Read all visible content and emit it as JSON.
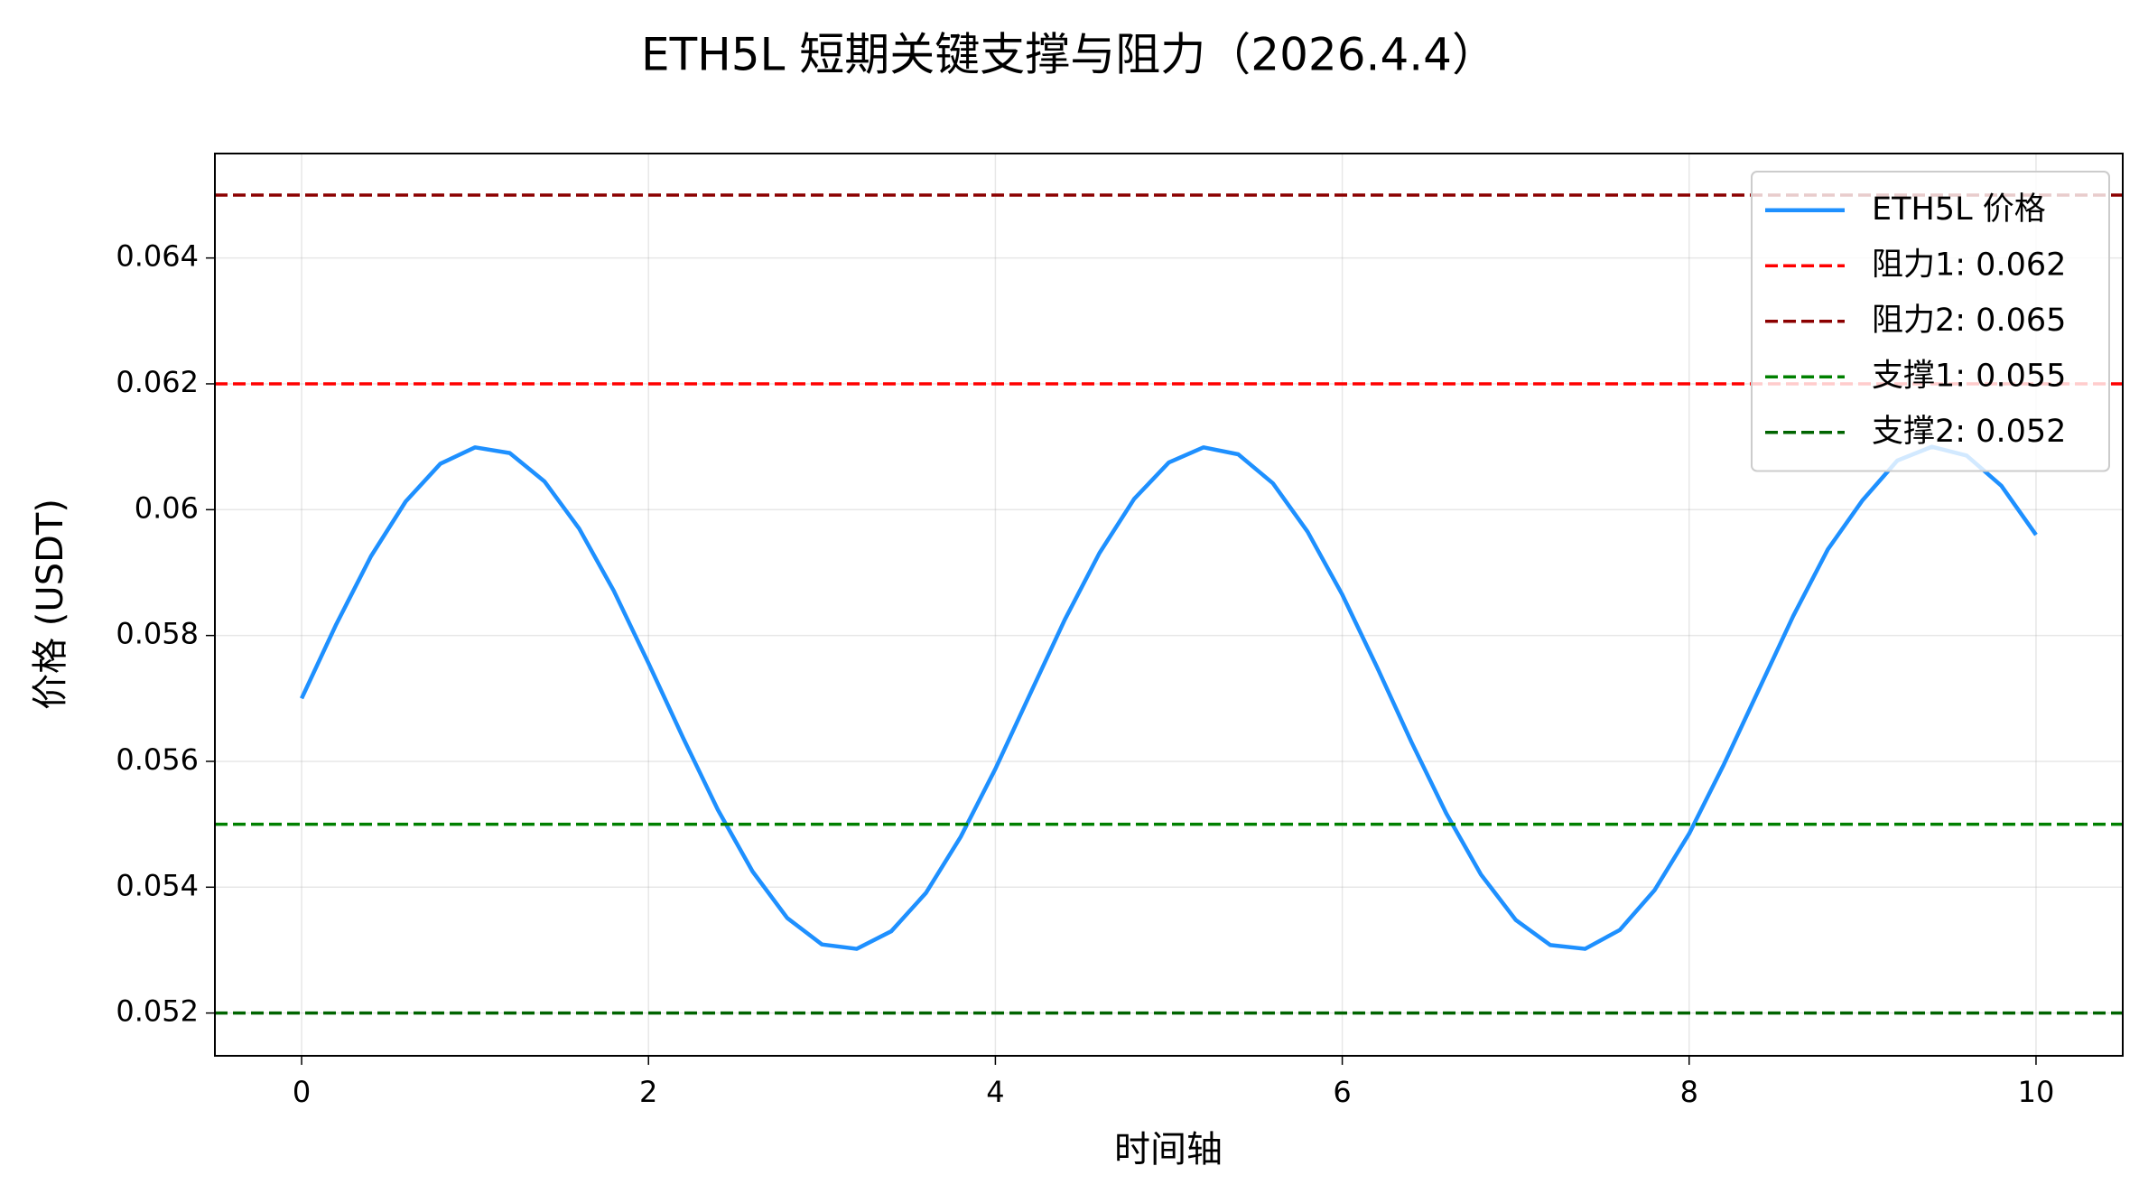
{
  "chart_data": {
    "type": "line",
    "title": "ETH5L 短期关键支撑与阻力（2026.4.4）",
    "xlabel": "时间轴",
    "ylabel": "价格 (USDT)",
    "x": [
      0,
      0.2,
      0.4,
      0.6,
      0.8,
      1,
      1.2,
      1.4,
      1.6,
      1.8,
      2,
      2.2,
      2.4,
      2.6,
      2.8,
      3,
      3.2,
      3.4,
      3.6,
      3.8,
      4,
      4.2,
      4.4,
      4.6,
      4.8,
      5,
      5.2,
      5.4,
      5.6,
      5.8,
      6,
      6.2,
      6.4,
      6.6,
      6.8,
      7,
      7.2,
      7.4,
      7.6,
      7.8,
      8,
      8.2,
      8.4,
      8.6,
      8.8,
      9,
      9.2,
      9.4,
      9.6,
      9.8,
      10
    ],
    "series": [
      {
        "name": "ETH5L 价格",
        "color": "#1e90ff",
        "values": [
          0.057,
          0.05818,
          0.05926,
          0.06013,
          0.06073,
          0.06099,
          0.0609,
          0.06045,
          0.0597,
          0.05871,
          0.05756,
          0.05637,
          0.05523,
          0.05425,
          0.05351,
          0.05309,
          0.05302,
          0.0533,
          0.05391,
          0.0548,
          0.05588,
          0.05707,
          0.05825,
          0.05931,
          0.06017,
          0.06075,
          0.06099,
          0.06088,
          0.06042,
          0.05965,
          0.05865,
          0.0575,
          0.0563,
          0.05517,
          0.0542,
          0.05348,
          0.05308,
          0.05302,
          0.05332,
          0.05395,
          0.05485,
          0.05595,
          0.05713,
          0.05831,
          0.05937,
          0.06015,
          0.06078,
          0.061,
          0.06086,
          0.06038,
          0.0596
        ]
      }
    ],
    "hlines": [
      {
        "name": "阻力1: 0.062",
        "color": "#ff0000",
        "value": 0.062
      },
      {
        "name": "阻力2: 0.065",
        "color": "#8b0000",
        "value": 0.065
      },
      {
        "name": "支撑1: 0.055",
        "color": "#008000",
        "value": 0.055
      },
      {
        "name": "支撑2: 0.052",
        "color": "#006400",
        "value": 0.052
      }
    ],
    "xlim": [
      -0.5,
      10.5
    ],
    "ylim": [
      0.05132,
      0.06566
    ],
    "xticks": [
      0,
      2,
      4,
      6,
      8,
      10
    ],
    "yticks": [
      0.052,
      0.054,
      0.056,
      0.058,
      0.06,
      0.062,
      0.064
    ],
    "grid": true,
    "legend": "upper right"
  }
}
